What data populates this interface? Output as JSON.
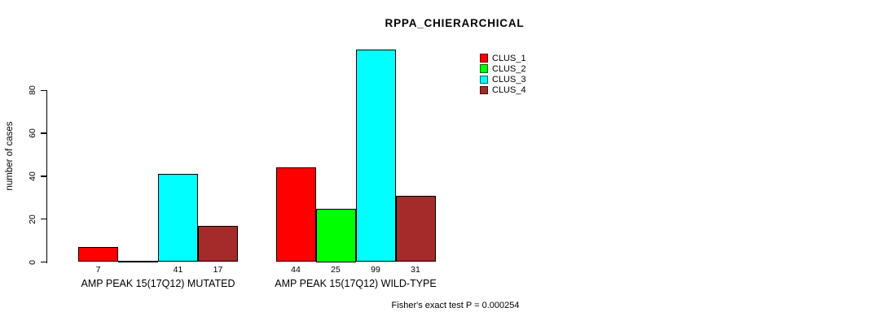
{
  "chart_data": {
    "type": "bar",
    "title": "RPPA_CHIERARCHICAL",
    "xlabel": "",
    "ylabel": "number of cases",
    "ylim": [
      0,
      80
    ],
    "yticks": [
      0,
      20,
      40,
      60,
      80
    ],
    "grid": false,
    "legend_position": "top-right",
    "categories": [
      "AMP PEAK 15(17Q12) MUTATED",
      "AMP PEAK 15(17Q12) WILD-TYPE"
    ],
    "series": [
      {
        "name": "CLUS_1",
        "color": "#FF0000",
        "values": [
          7,
          44
        ]
      },
      {
        "name": "CLUS_2",
        "color": "#00FF00",
        "values": [
          0,
          25
        ]
      },
      {
        "name": "CLUS_3",
        "color": "#00FFFF",
        "values": [
          41,
          99
        ]
      },
      {
        "name": "CLUS_4",
        "color": "#A52A2A",
        "values": [
          17,
          31
        ]
      }
    ],
    "bar_value_labels": [
      [
        "7",
        "",
        "41",
        "17"
      ],
      [
        "44",
        "25",
        "99",
        "31"
      ]
    ],
    "annotation": "Fisher's exact test P = 0.000254"
  }
}
